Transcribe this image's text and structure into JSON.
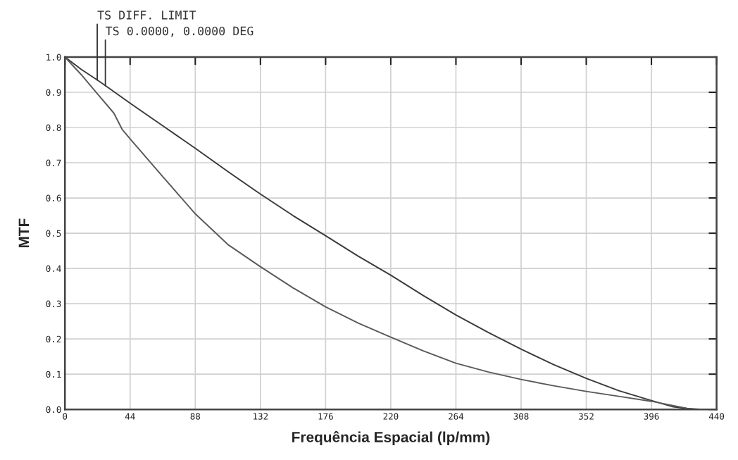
{
  "chart_data": {
    "type": "line",
    "xlabel": "Frequência Espacial (lp/mm)",
    "ylabel": "MTF",
    "series": [
      {
        "color": "#3a3a3a",
        "x": [
          0,
          11,
          21.8,
          27.3,
          44,
          66,
          88,
          110,
          132,
          154,
          176,
          198,
          220,
          242,
          264,
          286,
          308,
          330,
          352,
          374,
          396,
          410,
          425,
          440
        ],
        "values": [
          1.0,
          0.965,
          0.935,
          0.919,
          0.869,
          0.805,
          0.741,
          0.675,
          0.611,
          0.55,
          0.493,
          0.435,
          0.381,
          0.323,
          0.268,
          0.218,
          0.171,
          0.127,
          0.088,
          0.053,
          0.025,
          0.008,
          0.0,
          0.0
        ]
      },
      {
        "color": "#5a5a5a",
        "x": [
          0,
          11,
          22,
          33,
          38.6,
          44,
          66,
          88,
          110,
          132,
          154,
          176,
          198,
          220,
          242,
          264,
          286,
          308,
          330,
          352,
          374,
          396,
          420,
          430
        ],
        "values": [
          1.0,
          0.95,
          0.895,
          0.841,
          0.795,
          0.768,
          0.661,
          0.555,
          0.468,
          0.405,
          0.345,
          0.291,
          0.245,
          0.205,
          0.166,
          0.131,
          0.106,
          0.085,
          0.067,
          0.051,
          0.037,
          0.023,
          0.003,
          0.0
        ]
      }
    ],
    "annotations": [
      {
        "text": "TS DIFF. LIMIT",
        "x": 21.8,
        "y": 0.935
      },
      {
        "text": "TS 0.0000, 0.0000 DEG",
        "x": 27.3,
        "y": 0.919
      }
    ],
    "xlim": [
      0,
      440
    ],
    "xticks": [
      0,
      44,
      88,
      132,
      176,
      220,
      264,
      308,
      352,
      396,
      440
    ],
    "ylim": [
      0,
      1
    ],
    "yticks": [
      {
        "value": 0,
        "label": "0.0"
      },
      {
        "value": 0.1,
        "label": "0.1"
      },
      {
        "value": 0.2,
        "label": "0.2"
      },
      {
        "value": 0.3,
        "label": "0.3"
      },
      {
        "value": 0.4,
        "label": "0.4"
      },
      {
        "value": 0.5,
        "label": "0.5"
      },
      {
        "value": 0.6,
        "label": "0.6"
      },
      {
        "value": 0.7,
        "label": "0.7"
      },
      {
        "value": 0.8,
        "label": "0.8"
      },
      {
        "value": 0.9,
        "label": "0.9"
      },
      {
        "value": 1,
        "label": "1.0"
      }
    ],
    "grid": true,
    "legend": false
  }
}
